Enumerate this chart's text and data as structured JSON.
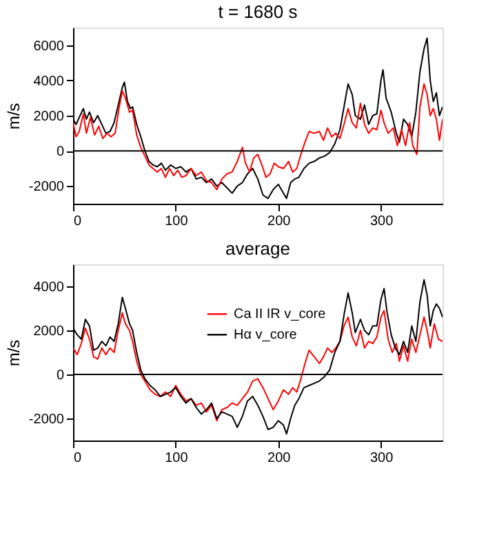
{
  "chart_data": [
    {
      "type": "line",
      "title": "t = 1680 s",
      "ylabel": "m/s",
      "xlim": [
        0,
        360
      ],
      "xticks": [
        0,
        100,
        200,
        300
      ],
      "ylim": [
        -3000,
        7000
      ],
      "yticks": [
        -2000,
        0,
        2000,
        4000,
        6000
      ],
      "grid": false,
      "ref_lines": [
        {
          "axis": "y",
          "value": 0,
          "color": "#000000"
        }
      ],
      "series": [
        {
          "color": "#000000",
          "x": [
            0,
            3,
            6,
            10,
            13,
            16,
            20,
            24,
            28,
            32,
            36,
            40,
            44,
            48,
            50,
            53,
            56,
            58,
            62,
            66,
            70,
            74,
            78,
            82,
            86,
            90,
            95,
            100,
            105,
            110,
            115,
            120,
            125,
            130,
            135,
            140,
            145,
            150,
            155,
            160,
            165,
            170,
            175,
            180,
            185,
            190,
            195,
            200,
            205,
            208,
            212,
            216,
            220,
            225,
            230,
            235,
            240,
            245,
            250,
            255,
            260,
            264,
            268,
            272,
            275,
            280,
            284,
            288,
            292,
            296,
            300,
            302,
            305,
            310,
            315,
            318,
            322,
            326,
            330,
            334,
            338,
            342,
            345,
            348,
            351,
            354,
            357,
            360
          ],
          "values": [
            1800,
            1500,
            1900,
            2400,
            1800,
            2200,
            1600,
            2000,
            1500,
            1000,
            1100,
            1600,
            2600,
            3600,
            3900,
            2800,
            2400,
            2500,
            1500,
            800,
            0,
            -600,
            -800,
            -900,
            -700,
            -1100,
            -800,
            -1000,
            -900,
            -1200,
            -1000,
            -1600,
            -1500,
            -1800,
            -1600,
            -2000,
            -1800,
            -2100,
            -2400,
            -2000,
            -1800,
            -1300,
            -1000,
            -1600,
            -2500,
            -2700,
            -2200,
            -1900,
            -2400,
            -2700,
            -1800,
            -1600,
            -1500,
            -1000,
            -700,
            -600,
            -400,
            -300,
            -100,
            400,
            1200,
            2500,
            3800,
            3200,
            2000,
            1800,
            2600,
            1500,
            2000,
            2100,
            4000,
            4600,
            3000,
            2200,
            1000,
            500,
            1800,
            1500,
            800,
            2200,
            4500,
            5800,
            6400,
            4000,
            2800,
            3300,
            2000,
            2500
          ]
        },
        {
          "color": "#ff0000",
          "x": [
            0,
            3,
            6,
            10,
            13,
            17,
            21,
            25,
            29,
            33,
            37,
            41,
            45,
            48,
            51,
            55,
            58,
            62,
            66,
            70,
            74,
            78,
            82,
            86,
            90,
            94,
            98,
            102,
            106,
            110,
            115,
            120,
            125,
            130,
            135,
            140,
            145,
            150,
            155,
            160,
            165,
            168,
            172,
            176,
            180,
            184,
            188,
            192,
            196,
            200,
            205,
            210,
            214,
            218,
            222,
            226,
            230,
            235,
            240,
            244,
            248,
            252,
            256,
            260,
            264,
            268,
            272,
            276,
            280,
            284,
            288,
            292,
            296,
            300,
            303,
            307,
            312,
            316,
            320,
            324,
            328,
            331,
            335,
            338,
            342,
            345,
            348,
            351,
            354,
            357,
            360
          ],
          "values": [
            1600,
            800,
            1100,
            2100,
            1000,
            1900,
            900,
            1400,
            700,
            1000,
            800,
            1000,
            2500,
            3400,
            3000,
            2200,
            2300,
            900,
            200,
            -300,
            -800,
            -1000,
            -1200,
            -1000,
            -1500,
            -1000,
            -1400,
            -1100,
            -1500,
            -1400,
            -1000,
            -1400,
            -1200,
            -1700,
            -1800,
            -2200,
            -1600,
            -1300,
            -1200,
            -600,
            200,
            -700,
            -1200,
            -400,
            -200,
            -800,
            -1500,
            -1300,
            -700,
            -900,
            -1000,
            -600,
            -1200,
            -1000,
            -200,
            500,
            1100,
            1000,
            1100,
            600,
            1300,
            800,
            1000,
            700,
            1500,
            2400,
            1600,
            1300,
            2700,
            1500,
            1000,
            1300,
            1200,
            2300,
            1600,
            1000,
            1300,
            300,
            1200,
            300,
            1600,
            300,
            -200,
            2500,
            3800,
            3200,
            2000,
            2400,
            1800,
            600,
            1800
          ]
        }
      ]
    },
    {
      "type": "line",
      "title": "average",
      "ylabel": "m/s",
      "xlim": [
        0,
        360
      ],
      "xticks": [
        0,
        100,
        200,
        300
      ],
      "ylim": [
        -3000,
        5000
      ],
      "yticks": [
        -2000,
        0,
        2000,
        4000
      ],
      "grid": false,
      "legend": "top",
      "ref_lines": [
        {
          "axis": "y",
          "value": 0,
          "color": "#000000"
        }
      ],
      "series": [
        {
          "name": "Ca II IR v_core",
          "color": "#ff0000",
          "x": [
            0,
            4,
            8,
            12,
            16,
            20,
            24,
            28,
            32,
            36,
            40,
            44,
            48,
            51,
            55,
            58,
            62,
            66,
            70,
            75,
            80,
            85,
            90,
            95,
            100,
            105,
            110,
            115,
            120,
            125,
            130,
            135,
            140,
            145,
            150,
            155,
            160,
            165,
            170,
            175,
            180,
            185,
            190,
            195,
            200,
            205,
            210,
            214,
            218,
            222,
            226,
            230,
            235,
            240,
            244,
            248,
            252,
            256,
            260,
            264,
            268,
            272,
            276,
            280,
            284,
            288,
            292,
            296,
            300,
            303,
            307,
            311,
            315,
            318,
            322,
            326,
            330,
            334,
            338,
            342,
            345,
            348,
            352,
            356,
            360
          ],
          "values": [
            1200,
            900,
            1400,
            2100,
            1600,
            800,
            700,
            1200,
            900,
            1200,
            1000,
            2000,
            2800,
            2300,
            2000,
            1500,
            600,
            0,
            -300,
            -700,
            -900,
            -1000,
            -800,
            -1000,
            -500,
            -900,
            -1200,
            -1100,
            -1400,
            -1300,
            -1700,
            -1400,
            -2100,
            -1600,
            -1500,
            -1300,
            -1400,
            -1100,
            -800,
            -300,
            -200,
            -600,
            -1100,
            -1600,
            -1200,
            -700,
            -900,
            -600,
            -800,
            -200,
            500,
            1100,
            800,
            500,
            800,
            1200,
            1000,
            1200,
            1500,
            2200,
            2600,
            1700,
            1300,
            2000,
            1200,
            1500,
            1400,
            1700,
            2600,
            2900,
            1600,
            1000,
            1400,
            600,
            1300,
            600,
            1600,
            1000,
            1800,
            2600,
            2000,
            1200,
            2300,
            1600,
            1500
          ]
        },
        {
          "name": "Hα v_core",
          "color": "#000000",
          "x": [
            0,
            4,
            8,
            12,
            16,
            20,
            24,
            28,
            32,
            36,
            40,
            44,
            48,
            51,
            55,
            58,
            62,
            66,
            70,
            75,
            80,
            85,
            90,
            95,
            100,
            105,
            110,
            115,
            120,
            125,
            130,
            135,
            140,
            145,
            150,
            155,
            160,
            165,
            170,
            175,
            180,
            185,
            190,
            195,
            200,
            205,
            208,
            212,
            216,
            220,
            225,
            230,
            235,
            240,
            245,
            250,
            255,
            260,
            264,
            268,
            272,
            275,
            280,
            284,
            288,
            292,
            296,
            300,
            303,
            306,
            310,
            314,
            318,
            322,
            326,
            330,
            334,
            338,
            342,
            345,
            348,
            351,
            354,
            357,
            360
          ],
          "values": [
            2100,
            1800,
            1600,
            2500,
            2200,
            1100,
            1200,
            1500,
            1300,
            1700,
            1500,
            2300,
            3500,
            3000,
            2300,
            2000,
            1000,
            200,
            -200,
            -500,
            -700,
            -1000,
            -900,
            -800,
            -600,
            -1000,
            -1300,
            -1100,
            -1500,
            -1800,
            -1600,
            -1300,
            -2000,
            -1700,
            -1800,
            -1900,
            -2400,
            -1900,
            -1200,
            -1000,
            -1400,
            -1900,
            -2500,
            -2400,
            -2100,
            -2300,
            -2700,
            -2000,
            -1400,
            -1100,
            -600,
            -500,
            -400,
            -300,
            -100,
            200,
            1000,
            1500,
            2700,
            3700,
            2800,
            1900,
            2500,
            2000,
            1800,
            2200,
            2200,
            3400,
            3900,
            2800,
            1800,
            1200,
            900,
            1500,
            1000,
            2200,
            1500,
            3300,
            4300,
            3600,
            2200,
            2900,
            3200,
            3000,
            2600
          ]
        }
      ]
    }
  ]
}
